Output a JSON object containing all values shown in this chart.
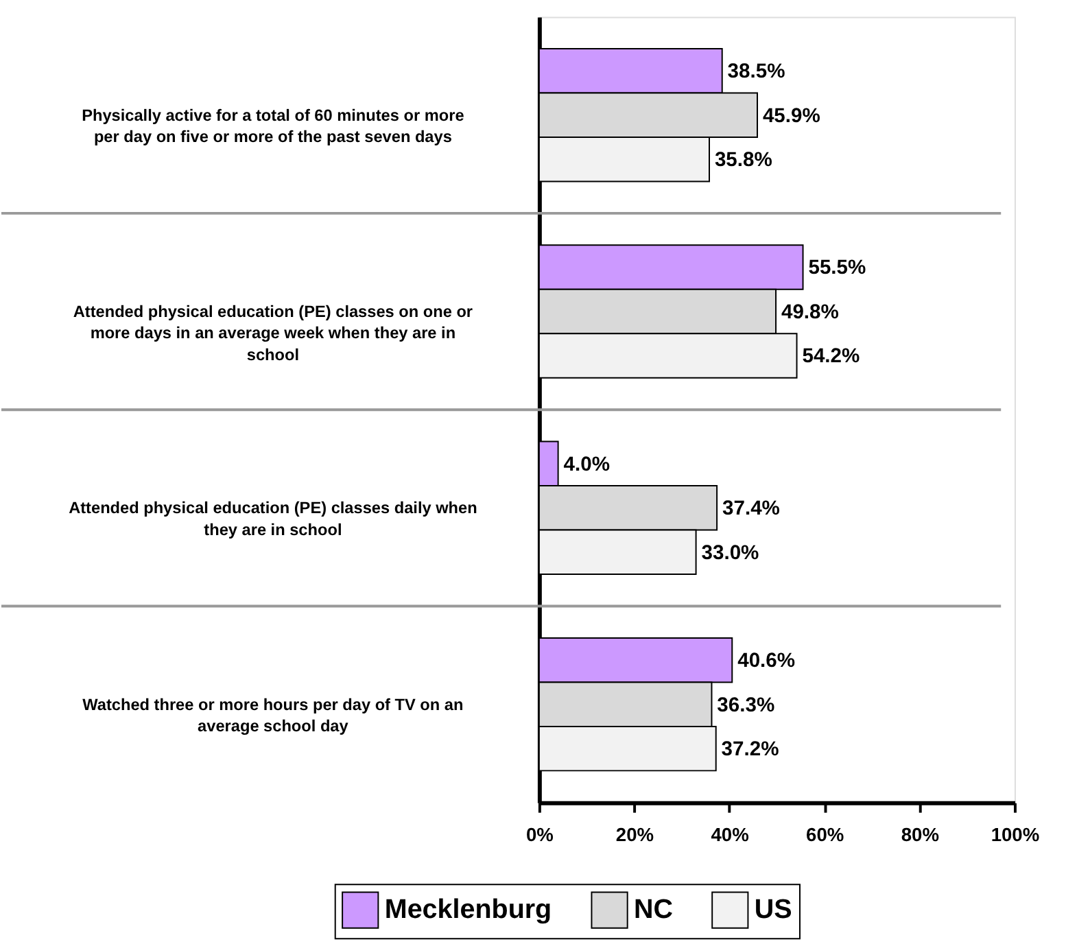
{
  "chart_data": {
    "type": "bar",
    "orientation": "horizontal",
    "categories": [
      "Physically active for a total of 60 minutes or more per day on five or more of the past seven days",
      "Attended physical education (PE) classes on one or more days in an average week when they are in school",
      "Attended physical education (PE) classes daily when they are in school",
      "Watched three or more hours per day of TV on an average school day"
    ],
    "series": [
      {
        "name": "Mecklenburg",
        "color": "#cc99ff",
        "values": [
          38.5,
          55.5,
          4.0,
          40.6
        ],
        "value_labels": [
          "38.5%",
          "55.5%",
          "4.0%",
          "40.6%"
        ]
      },
      {
        "name": "NC",
        "color": "#d9d9d9",
        "values": [
          45.9,
          49.8,
          37.4,
          36.3
        ],
        "value_labels": [
          "45.9%",
          "49.8%",
          "37.4%",
          "36.3%"
        ]
      },
      {
        "name": "US",
        "color": "#f2f2f2",
        "values": [
          35.8,
          54.2,
          33.0,
          37.2
        ],
        "value_labels": [
          "35.8%",
          "54.2%",
          "33.0%",
          "37.2%"
        ]
      }
    ],
    "xlim": [
      0,
      100
    ],
    "xticks": [
      {
        "value": 0,
        "label": "0%"
      },
      {
        "value": 20,
        "label": "20%"
      },
      {
        "value": 40,
        "label": "40%"
      },
      {
        "value": 60,
        "label": "60%"
      },
      {
        "value": 80,
        "label": "80%"
      },
      {
        "value": 100,
        "label": "100%"
      }
    ],
    "grid": "y",
    "legend": "bottom"
  }
}
